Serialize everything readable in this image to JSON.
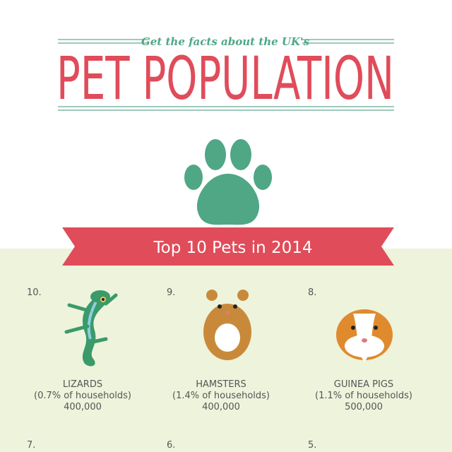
{
  "header": {
    "subtitle": "Get the facts about the UK's",
    "title": "PET POPULATION"
  },
  "banner": "Top 10 Pets in 2014",
  "pets": [
    {
      "rank": "10.",
      "name": "LIZARDS",
      "share": "(0.7% of households)",
      "count": "400,000"
    },
    {
      "rank": "9.",
      "name": "HAMSTERS",
      "share": "(1.4% of households)",
      "count": "400,000"
    },
    {
      "rank": "8.",
      "name": "GUINEA PIGS",
      "share": "(1.1% of households)",
      "count": "500,000"
    },
    {
      "rank": "7."
    },
    {
      "rank": "6."
    },
    {
      "rank": "5."
    }
  ]
}
